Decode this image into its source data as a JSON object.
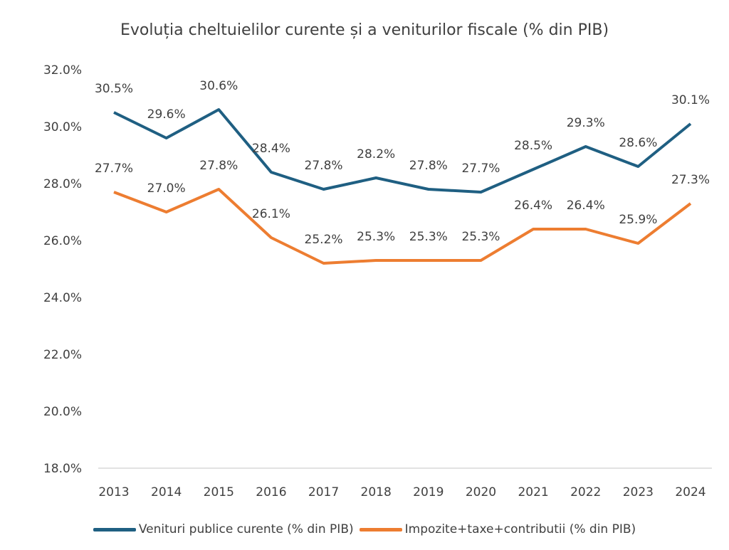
{
  "chart_data": {
    "type": "line",
    "title": "Evoluția cheltuielilor curente și a veniturilor fiscale (% din PIB)",
    "xlabel": "",
    "ylabel": "",
    "categories": [
      "2013",
      "2014",
      "2015",
      "2016",
      "2017",
      "2018",
      "2019",
      "2020",
      "2021",
      "2022",
      "2023",
      "2024"
    ],
    "ylim": [
      18,
      32
    ],
    "yticks": [
      "18.0%",
      "20.0%",
      "22.0%",
      "24.0%",
      "26.0%",
      "28.0%",
      "30.0%",
      "32.0%"
    ],
    "grid": false,
    "legend_position": "bottom",
    "series": [
      {
        "name": "Venituri publice curente (% din PIB)",
        "color": "#1f5f82",
        "values": [
          30.5,
          29.6,
          30.6,
          28.4,
          27.8,
          28.2,
          27.8,
          27.7,
          28.5,
          29.3,
          28.6,
          30.1
        ],
        "labels": [
          "30.5%",
          "29.6%",
          "30.6%",
          "28.4%",
          "27.8%",
          "28.2%",
          "27.8%",
          "27.7%",
          "28.5%",
          "29.3%",
          "28.6%",
          "30.1%"
        ]
      },
      {
        "name": "Impozite+taxe+contributii (% din PIB)",
        "color": "#ed7d31",
        "values": [
          27.7,
          27.0,
          27.8,
          26.1,
          25.2,
          25.3,
          25.3,
          25.3,
          26.4,
          26.4,
          25.9,
          27.3
        ],
        "labels": [
          "27.7%",
          "27.0%",
          "27.8%",
          "26.1%",
          "25.2%",
          "25.3%",
          "25.3%",
          "25.3%",
          "26.4%",
          "26.4%",
          "25.9%",
          "27.3%"
        ]
      }
    ]
  }
}
